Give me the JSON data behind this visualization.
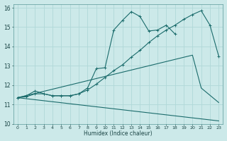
{
  "xlabel": "Humidex (Indice chaleur)",
  "background_color": "#cce9e9",
  "grid_color": "#b0d8d8",
  "line_color": "#1a6b6b",
  "xlim": [
    -0.5,
    23.5
  ],
  "ylim": [
    10,
    16.2
  ],
  "xticks": [
    0,
    1,
    2,
    3,
    4,
    5,
    6,
    7,
    8,
    9,
    10,
    11,
    12,
    13,
    14,
    15,
    16,
    17,
    18,
    19,
    20,
    21,
    22,
    23
  ],
  "yticks": [
    10,
    11,
    12,
    13,
    14,
    15,
    16
  ],
  "curve1_x": [
    0,
    1,
    2,
    3,
    4,
    5,
    6,
    7,
    8,
    9,
    10,
    11,
    12,
    13,
    14,
    15,
    16,
    17,
    18
  ],
  "curve1_y": [
    11.35,
    11.45,
    11.7,
    11.55,
    11.45,
    11.45,
    11.45,
    11.55,
    11.85,
    12.85,
    12.9,
    14.85,
    15.35,
    15.8,
    15.55,
    14.8,
    14.85,
    15.1,
    14.65
  ],
  "curve2_x": [
    0,
    1,
    2,
    3,
    4,
    5,
    6,
    7,
    8,
    9,
    10,
    11,
    12,
    13,
    14,
    15,
    16,
    17,
    18,
    19,
    20,
    21,
    22,
    23
  ],
  "curve2_y": [
    11.35,
    11.4,
    11.55,
    11.55,
    11.45,
    11.45,
    11.45,
    11.55,
    11.75,
    12.05,
    12.4,
    12.75,
    13.05,
    13.45,
    13.8,
    14.2,
    14.55,
    14.85,
    15.1,
    15.4,
    15.65,
    15.85,
    15.1,
    13.5
  ],
  "curve3_x": [
    0,
    23
  ],
  "curve3_y": [
    11.35,
    10.15
  ],
  "curve4_x": [
    0,
    20,
    21,
    23
  ],
  "curve4_y": [
    11.35,
    13.55,
    11.85,
    11.1
  ]
}
